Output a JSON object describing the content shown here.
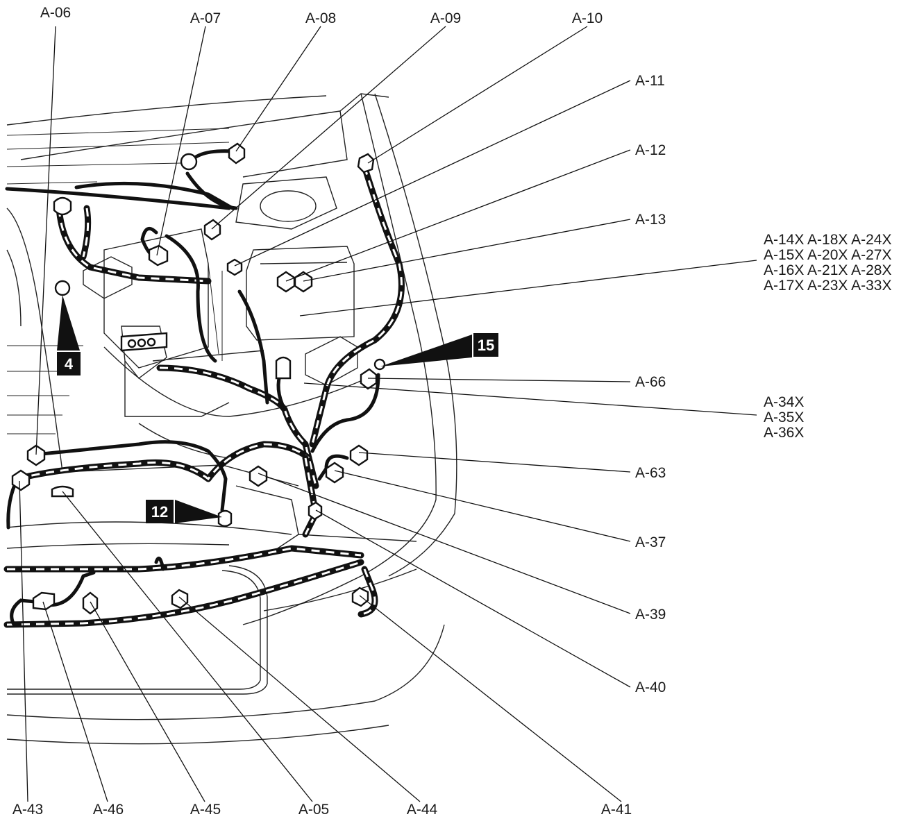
{
  "labels": {
    "a06": "A-06",
    "a07": "A-07",
    "a08": "A-08",
    "a09": "A-09",
    "a10": "A-10",
    "a11": "A-11",
    "a12": "A-12",
    "a13": "A-13",
    "group_x": {
      "row1": "A-14X A-18X A-24X",
      "row2": "A-15X A-20X A-27X",
      "row3": "A-16X A-21X A-28X",
      "row4": "A-17X A-23X A-33X"
    },
    "a66": "A-66",
    "group_34": {
      "row1": "A-34X",
      "row2": "A-35X",
      "row3": "A-36X"
    },
    "a63": "A-63",
    "a37": "A-37",
    "a39": "A-39",
    "a40": "A-40",
    "a41": "A-41",
    "a44": "A-44",
    "a05": "A-05",
    "a45": "A-45",
    "a46": "A-46",
    "a43": "A-43"
  },
  "badges": {
    "b4": "4",
    "b12": "12",
    "b15": "15"
  }
}
